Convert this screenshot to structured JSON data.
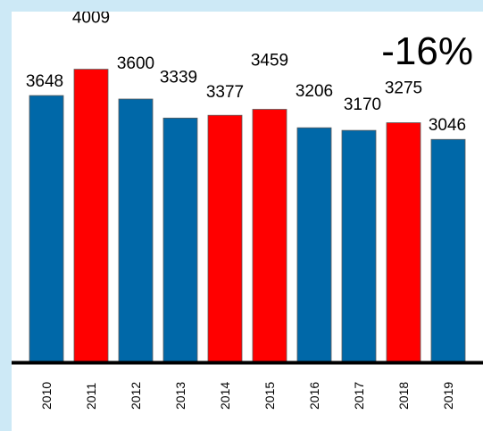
{
  "headline": "-16%",
  "colors": {
    "blue": "#0068a8",
    "red": "#ff0000",
    "axis": "#000000",
    "page_background": "#cde9f6"
  },
  "chart_data": {
    "type": "bar",
    "title": "",
    "xlabel": "",
    "ylabel": "",
    "categories": [
      "2010",
      "2011",
      "2012",
      "2013",
      "2014",
      "2015",
      "2016",
      "2017",
      "2018",
      "2019"
    ],
    "values": [
      3648,
      4009,
      3600,
      3339,
      3377,
      3459,
      3206,
      3170,
      3275,
      3046
    ],
    "bar_colors": [
      "blue",
      "red",
      "blue",
      "blue",
      "red",
      "red",
      "blue",
      "blue",
      "red",
      "blue"
    ],
    "ylim": [
      0,
      4800
    ],
    "grid": false,
    "legend": "none",
    "y_axis_visible": false,
    "data_labels": true,
    "x_tick_rotation": -90
  }
}
